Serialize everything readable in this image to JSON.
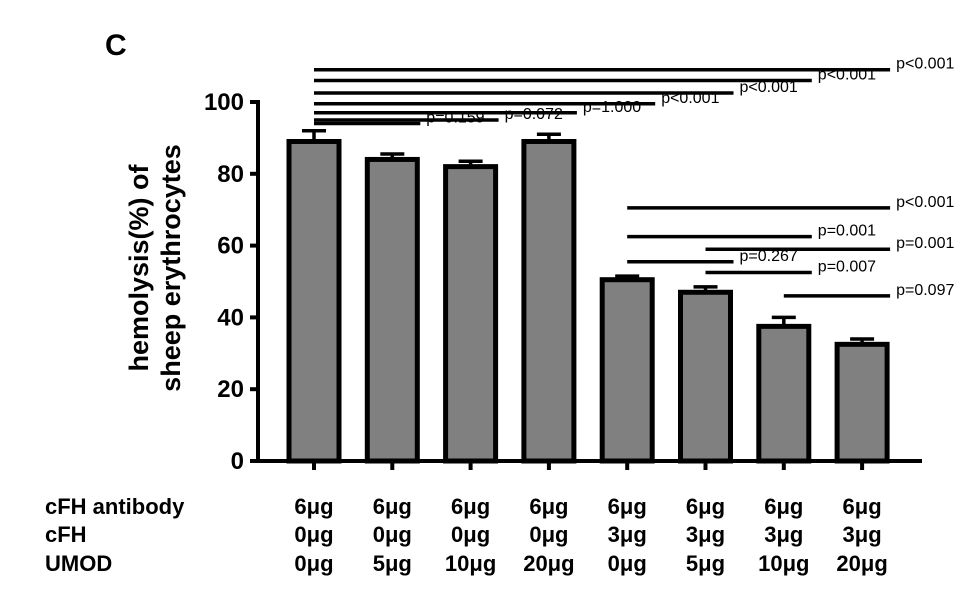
{
  "chart_data": {
    "type": "bar",
    "panel_label": "C",
    "ylabel_line1": "hemolysis(%) of",
    "ylabel_line2": "sheep erythrocytes",
    "ylim": [
      0,
      100
    ],
    "yticks": [
      "0",
      "20",
      "40",
      "60",
      "80",
      "100"
    ],
    "ytick_values": [
      0,
      20,
      40,
      60,
      80,
      100
    ],
    "values": [
      89,
      84,
      82,
      89,
      50.5,
      47,
      37.5,
      32.5
    ],
    "errors": [
      3,
      1.5,
      1.5,
      2,
      1,
      1.5,
      2.5,
      1.5
    ],
    "bar_color": "#808080",
    "row_labels": [
      "cFH antibody",
      "cFH",
      "UMOD"
    ],
    "conditions": [
      [
        "6μg",
        "0μg",
        "0μg"
      ],
      [
        "6μg",
        "0μg",
        "5μg"
      ],
      [
        "6μg",
        "0μg",
        "10μg"
      ],
      [
        "6μg",
        "0μg",
        "20μg"
      ],
      [
        "6μg",
        "3μg",
        "0μg"
      ],
      [
        "6μg",
        "3μg",
        "5μg"
      ],
      [
        "6μg",
        "3μg",
        "10μg"
      ],
      [
        "6μg",
        "3μg",
        "20μg"
      ]
    ],
    "comparisons": [
      {
        "from": 0,
        "to": 7,
        "y": 109,
        "label": "p<0.001"
      },
      {
        "from": 0,
        "to": 6,
        "y": 106,
        "label": "p<0.001"
      },
      {
        "from": 0,
        "to": 5,
        "y": 102.5,
        "label": "p<0.001"
      },
      {
        "from": 0,
        "to": 4,
        "y": 99.5,
        "label": "p<0.001"
      },
      {
        "from": 0,
        "to": 3,
        "y": 97,
        "label": "p=1.000"
      },
      {
        "from": 0,
        "to": 2,
        "y": 95,
        "label": "p=0.072"
      },
      {
        "from": 0,
        "to": 1,
        "y": 94,
        "label": "p=0.159"
      },
      {
        "from": 4,
        "to": 7,
        "y": 70.5,
        "label": "p<0.001"
      },
      {
        "from": 4,
        "to": 6,
        "y": 62.5,
        "label": "p=0.001"
      },
      {
        "from": 5,
        "to": 7,
        "y": 59,
        "label": "p=0.001"
      },
      {
        "from": 4,
        "to": 5,
        "y": 55.5,
        "label": "p=0.267"
      },
      {
        "from": 5,
        "to": 6,
        "y": 52.5,
        "label": "p=0.007"
      },
      {
        "from": 6,
        "to": 7,
        "y": 46,
        "label": "p=0.097"
      }
    ]
  }
}
